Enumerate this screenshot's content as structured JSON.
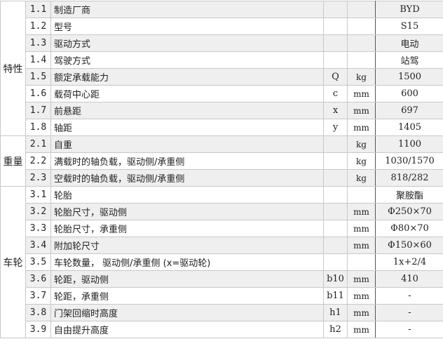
{
  "groups": [
    {
      "label": "特性",
      "rows": [
        {
          "no": "1.1",
          "name": "制造厂商",
          "sym": "",
          "unit": "",
          "val": "BYD"
        },
        {
          "no": "1.2",
          "name": "型号",
          "sym": "",
          "unit": "",
          "val": "S15"
        },
        {
          "no": "1.3",
          "name": "驱动方式",
          "sym": "",
          "unit": "",
          "val": "电动"
        },
        {
          "no": "1.4",
          "name": "驾驶方式",
          "sym": "",
          "unit": "",
          "val": "站驾"
        },
        {
          "no": "1.5",
          "name": "额定承载能力",
          "sym": "Q",
          "unit": "kg",
          "val": "1500"
        },
        {
          "no": "1.6",
          "name": "载荷中心距",
          "sym": "c",
          "unit": "mm",
          "val": "600"
        },
        {
          "no": "1.7",
          "name": "前悬距",
          "sym": "x",
          "unit": "mm",
          "val": "697"
        },
        {
          "no": "1.8",
          "name": "轴距",
          "sym": "y",
          "unit": "mm",
          "val": "1405"
        }
      ]
    },
    {
      "label": "重量",
      "rows": [
        {
          "no": "2.1",
          "name": "自重",
          "sym": "",
          "unit": "kg",
          "val": "1100"
        },
        {
          "no": "2.2",
          "name": "满载时的轴负载，驱动侧/承重侧",
          "sym": "",
          "unit": "kg",
          "val": "1030/1570"
        },
        {
          "no": "2.3",
          "name": "空载时的轴负载，驱动侧/承重侧",
          "sym": "",
          "unit": "kg",
          "val": "818/282"
        }
      ]
    },
    {
      "label": "车轮",
      "rows": [
        {
          "no": "3.1",
          "name": "轮胎",
          "sym": "",
          "unit": "",
          "val": "聚胺酯"
        },
        {
          "no": "3.2",
          "name": "轮胎尺寸，驱动侧",
          "sym": "",
          "unit": "mm",
          "val": "Φ250×70"
        },
        {
          "no": "3.3",
          "name": "轮胎尺寸，承重侧",
          "sym": "",
          "unit": "mm",
          "val": "Φ80×70"
        },
        {
          "no": "3.4",
          "name": "附加轮尺寸",
          "sym": "",
          "unit": "mm",
          "val": "Φ150×60"
        },
        {
          "no": "3.5",
          "name": "车轮数量， 驱动侧/承重侧 (x=驱动轮)",
          "sym": "",
          "unit": "",
          "val": "1x+2/4"
        },
        {
          "no": "3.6",
          "name": "轮距，驱动侧",
          "sym": "b10",
          "unit": "mm",
          "val": "410"
        },
        {
          "no": "3.7",
          "name": "轮距，承重侧",
          "sym": "b11",
          "unit": "mm",
          "val": "-"
        },
        {
          "no": "3.8",
          "name": "门架回缩时高度",
          "sym": "h1",
          "unit": "mm",
          "val": "-"
        },
        {
          "no": "3.9",
          "name": "自由提升高度",
          "sym": "h2",
          "unit": "mm",
          "val": "-"
        }
      ]
    }
  ]
}
